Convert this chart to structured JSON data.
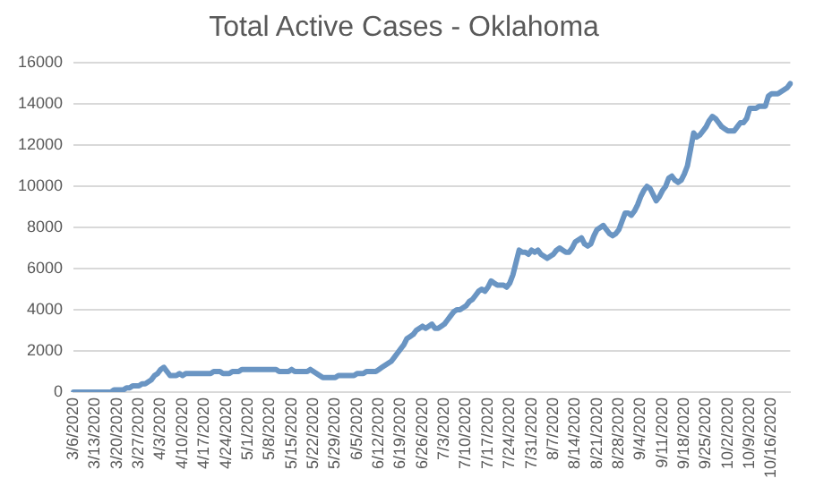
{
  "chart_data": {
    "type": "line",
    "title": "Total Active Cases - Oklahoma",
    "categories": [
      "3/6/2020",
      null,
      null,
      null,
      null,
      null,
      null,
      "3/13/2020",
      null,
      null,
      null,
      null,
      null,
      null,
      "3/20/2020",
      null,
      null,
      null,
      null,
      null,
      null,
      "3/27/2020",
      null,
      null,
      null,
      null,
      null,
      null,
      "4/3/2020",
      null,
      null,
      null,
      null,
      null,
      null,
      "4/10/2020",
      null,
      null,
      null,
      null,
      null,
      null,
      "4/17/2020",
      null,
      null,
      null,
      null,
      null,
      null,
      "4/24/2020",
      null,
      null,
      null,
      null,
      null,
      null,
      "5/1/2020",
      null,
      null,
      null,
      null,
      null,
      null,
      "5/8/2020",
      null,
      null,
      null,
      null,
      null,
      null,
      "5/15/2020",
      null,
      null,
      null,
      null,
      null,
      null,
      "5/22/2020",
      null,
      null,
      null,
      null,
      null,
      null,
      "5/29/2020",
      null,
      null,
      null,
      null,
      null,
      null,
      "6/5/2020",
      null,
      null,
      null,
      null,
      null,
      null,
      "6/12/2020",
      null,
      null,
      null,
      null,
      null,
      null,
      "6/19/2020",
      null,
      null,
      null,
      null,
      null,
      null,
      "6/26/2020",
      null,
      null,
      null,
      null,
      null,
      null,
      "7/3/2020",
      null,
      null,
      null,
      null,
      null,
      null,
      "7/10/2020",
      null,
      null,
      null,
      null,
      null,
      null,
      "7/17/2020",
      null,
      null,
      null,
      null,
      null,
      null,
      "7/24/2020",
      null,
      null,
      null,
      null,
      null,
      null,
      "7/31/2020",
      null,
      null,
      null,
      null,
      null,
      null,
      "8/7/2020",
      null,
      null,
      null,
      null,
      null,
      null,
      "8/14/2020",
      null,
      null,
      null,
      null,
      null,
      null,
      "8/21/2020",
      null,
      null,
      null,
      null,
      null,
      null,
      "8/28/2020",
      null,
      null,
      null,
      null,
      null,
      null,
      "9/4/2020",
      null,
      null,
      null,
      null,
      null,
      null,
      "9/11/2020",
      null,
      null,
      null,
      null,
      null,
      null,
      "9/18/2020",
      null,
      null,
      null,
      null,
      null,
      null,
      "9/25/2020",
      null,
      null,
      null,
      null,
      null,
      null,
      "10/2/2020",
      null,
      null,
      null,
      null,
      null,
      null,
      "10/9/2020",
      null,
      null,
      null,
      null,
      null,
      null,
      "10/16/2020",
      null,
      null,
      null,
      null,
      null,
      null
    ],
    "series": [
      {
        "color": "#6a95c3",
        "values": [
          0,
          0,
          0,
          0,
          0,
          0,
          0,
          0,
          0,
          0,
          0,
          0,
          0,
          100,
          100,
          100,
          100,
          200,
          200,
          300,
          300,
          300,
          400,
          400,
          500,
          600,
          800,
          900,
          1100,
          1200,
          1000,
          800,
          800,
          800,
          900,
          800,
          900,
          900,
          900,
          900,
          900,
          900,
          900,
          900,
          900,
          1000,
          1000,
          1000,
          900,
          900,
          900,
          1000,
          1000,
          1000,
          1100,
          1100,
          1100,
          1100,
          1100,
          1100,
          1100,
          1100,
          1100,
          1100,
          1100,
          1100,
          1000,
          1000,
          1000,
          1000,
          1100,
          1000,
          1000,
          1000,
          1000,
          1000,
          1100,
          1000,
          900,
          800,
          700,
          700,
          700,
          700,
          700,
          800,
          800,
          800,
          800,
          800,
          800,
          900,
          900,
          900,
          1000,
          1000,
          1000,
          1000,
          1100,
          1200,
          1300,
          1400,
          1500,
          1700,
          1900,
          2100,
          2300,
          2600,
          2700,
          2800,
          3000,
          3100,
          3200,
          3100,
          3200,
          3300,
          3100,
          3100,
          3200,
          3300,
          3500,
          3700,
          3900,
          4000,
          4000,
          4100,
          4200,
          4400,
          4500,
          4700,
          4900,
          5000,
          4900,
          5100,
          5400,
          5300,
          5200,
          5200,
          5200,
          5100,
          5300,
          5700,
          6300,
          6900,
          6800,
          6800,
          6700,
          6900,
          6800,
          6900,
          6700,
          6600,
          6500,
          6600,
          6700,
          6900,
          7000,
          6900,
          6800,
          6800,
          7000,
          7300,
          7400,
          7500,
          7200,
          7100,
          7200,
          7600,
          7900,
          8000,
          8100,
          7900,
          7700,
          7600,
          7700,
          7900,
          8300,
          8700,
          8700,
          8600,
          8800,
          9100,
          9500,
          9800,
          10000,
          9900,
          9600,
          9300,
          9500,
          9800,
          10000,
          10400,
          10500,
          10300,
          10200,
          10300,
          10600,
          11000,
          11800,
          12600,
          12400,
          12500,
          12700,
          12900,
          13200,
          13400,
          13300,
          13100,
          12900,
          12800,
          12700,
          12700,
          12700,
          12900,
          13100,
          13100,
          13300,
          13800,
          13800,
          13800,
          13900,
          13900,
          13900,
          14400,
          14500,
          14500,
          14500,
          14600,
          14700,
          14800,
          15000
        ]
      }
    ],
    "ylim": [
      0,
      16000
    ],
    "yticks": [
      0,
      2000,
      4000,
      6000,
      8000,
      10000,
      12000,
      14000,
      16000
    ],
    "grid": "y",
    "legend": false,
    "marker": "none",
    "line_style": "solid"
  }
}
